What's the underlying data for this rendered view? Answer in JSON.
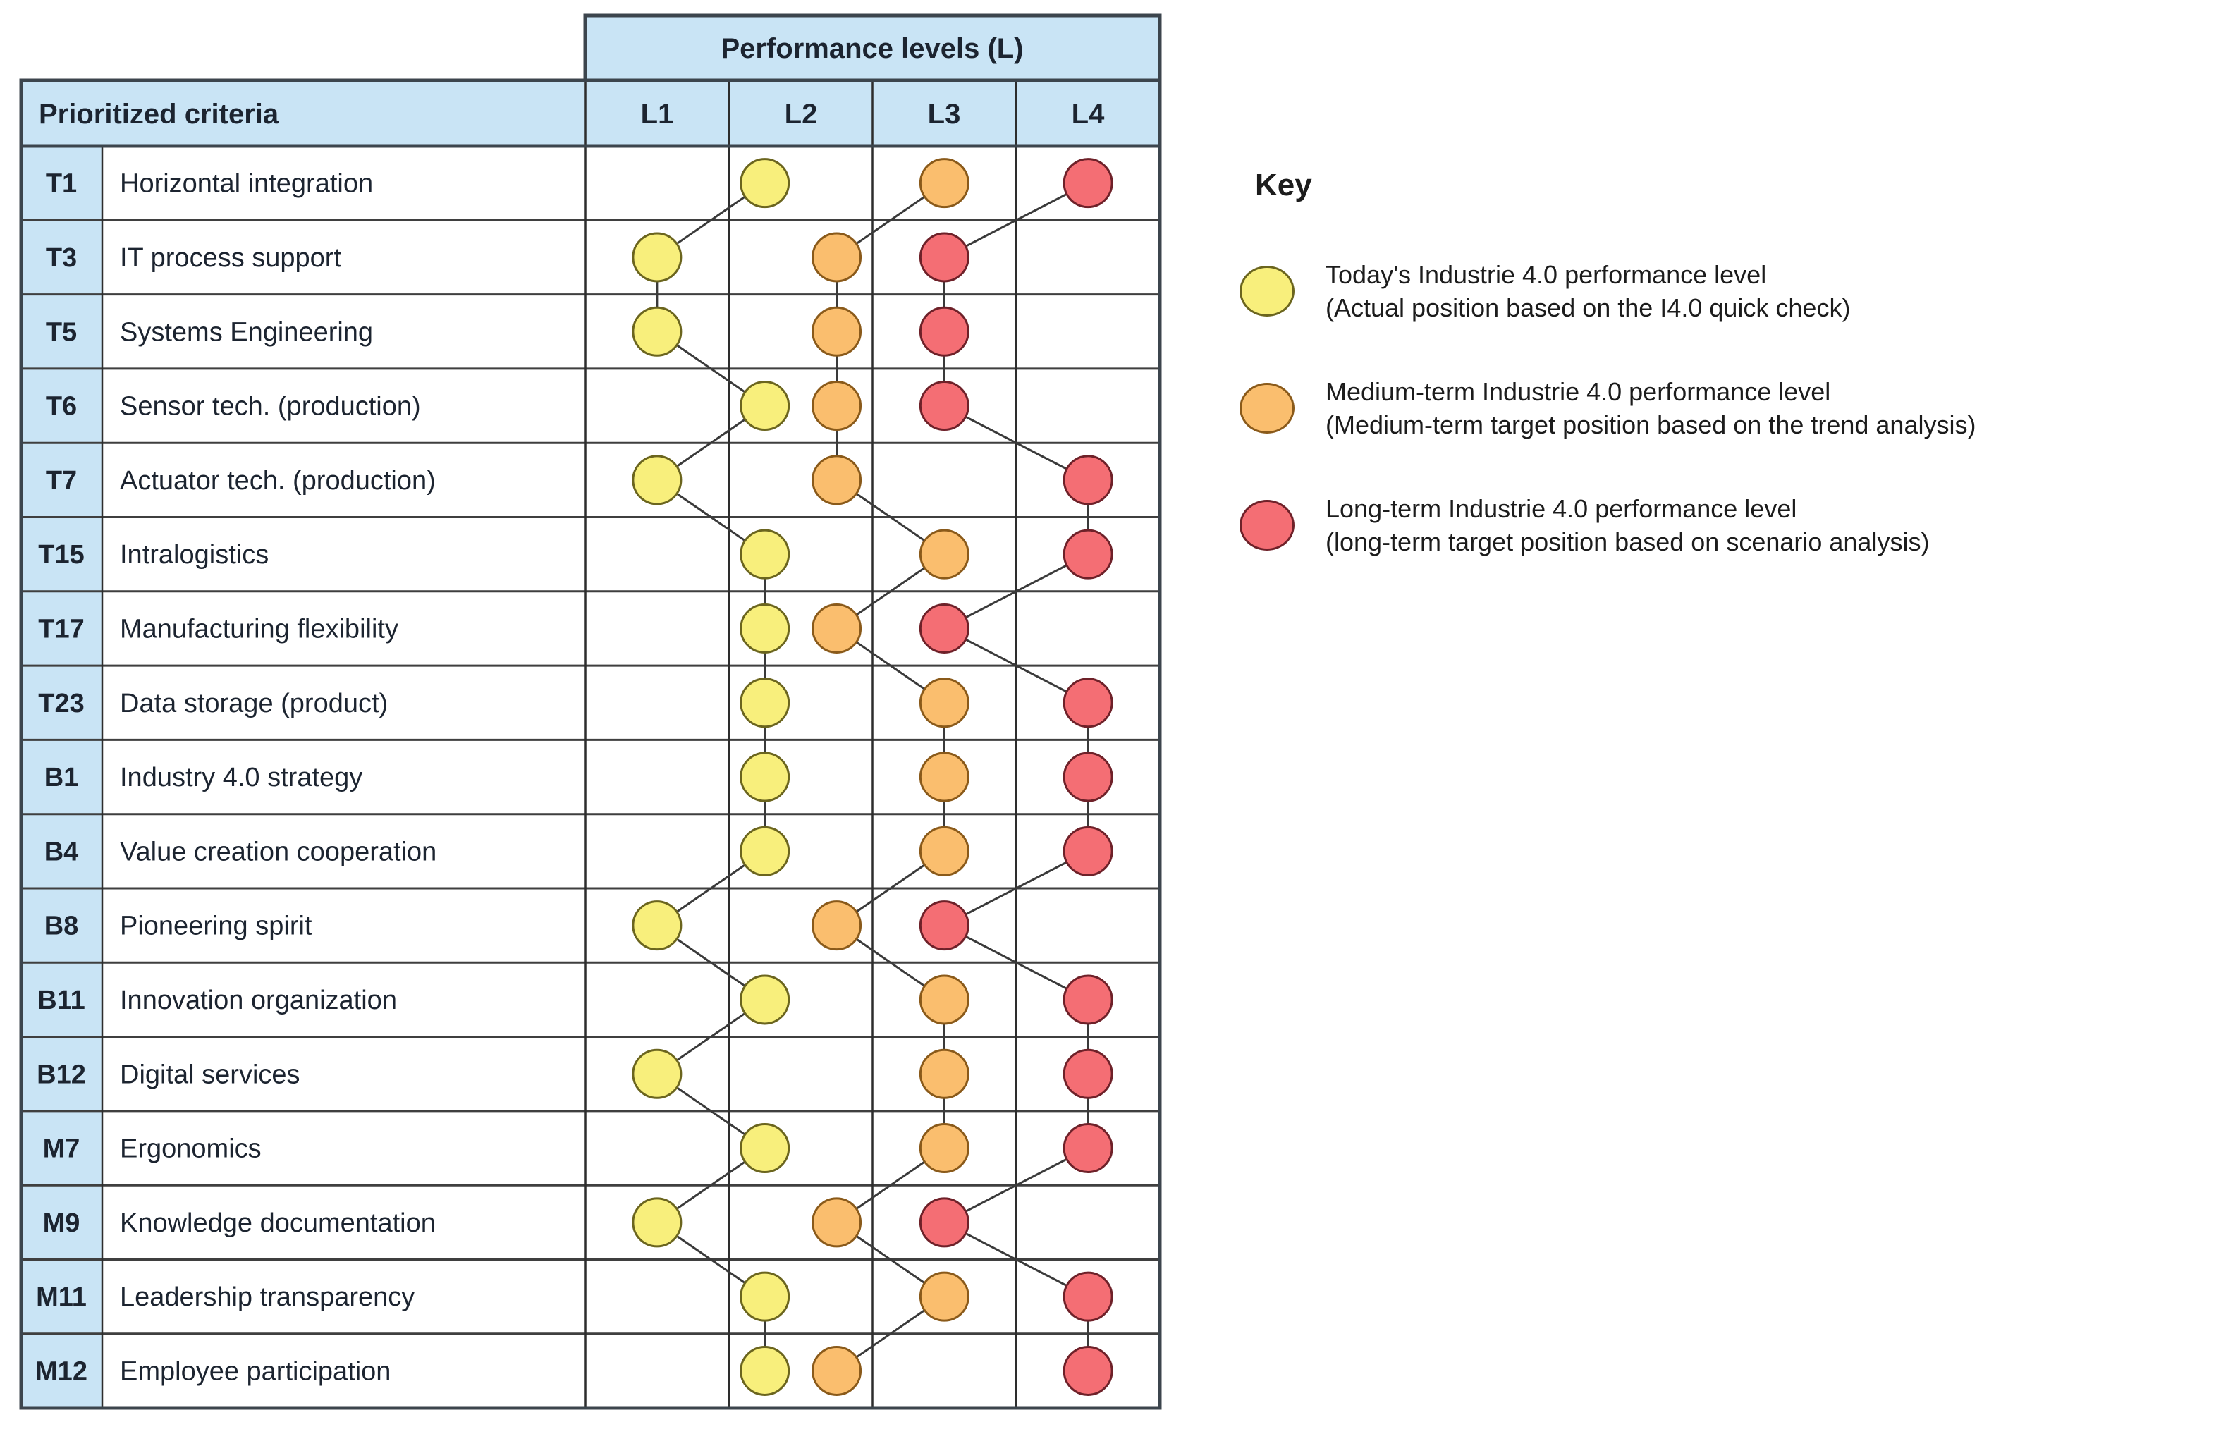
{
  "table": {
    "performance_header": "Performance levels (L)",
    "criteria_header": "Prioritized criteria",
    "level_labels": [
      "L1",
      "L2",
      "L3",
      "L4"
    ]
  },
  "key": {
    "title": "Key",
    "entries": [
      {
        "series": "today",
        "line1": "Today's Industrie 4.0 performance level",
        "line2": "(Actual position based on the I4.0 quick check)"
      },
      {
        "series": "medium_term",
        "line1": "Medium-term Industrie 4.0 performance level",
        "line2": "(Medium-term target position based on the trend analysis)"
      },
      {
        "series": "long_term",
        "line1": "Long-term Industrie 4.0 performance level",
        "line2": "(long-term target position based on scenario analysis)"
      }
    ]
  },
  "colors": {
    "header_blue": "#C9E4F5",
    "grid_line": "#3f3f3f",
    "column_line": "#2d2d2d",
    "frame_line": "#3c454d",
    "connector_line": "#3a3a3a",
    "text": "#1c2430",
    "today": {
      "fill": "#F8EF7C",
      "stroke": "#6B651E"
    },
    "medium_term": {
      "fill": "#FABE6E",
      "stroke": "#8A5A1A"
    },
    "long_term": {
      "fill": "#F46E74",
      "stroke": "#6E2129"
    }
  },
  "chart_data": {
    "type": "scatter",
    "title": "Performance levels (L)",
    "x_axis": {
      "label": "Performance levels (L)",
      "categories": [
        "L1",
        "L2",
        "L3",
        "L4"
      ],
      "range": [
        0.5,
        4.5
      ],
      "encoding": "value n sits at the center of column Ln; fractional values are offsets within a column"
    },
    "y_axis": {
      "label": "Prioritized criteria",
      "categories": [
        "T1",
        "T3",
        "T5",
        "T6",
        "T7",
        "T15",
        "T17",
        "T23",
        "B1",
        "B4",
        "B8",
        "B11",
        "B12",
        "M7",
        "M9",
        "M11",
        "M12"
      ]
    },
    "series": [
      {
        "name": "today",
        "label": "Today's Industrie 4.0 performance level"
      },
      {
        "name": "medium_term",
        "label": "Medium-term Industrie 4.0 performance level"
      },
      {
        "name": "long_term",
        "label": "Long-term Industrie 4.0 performance level"
      }
    ],
    "rows": [
      {
        "code": "T1",
        "label": "Horizontal integration",
        "today": 1.75,
        "medium_term": 3,
        "long_term": 4
      },
      {
        "code": "T3",
        "label": "IT process support",
        "today": 1,
        "medium_term": 2.25,
        "long_term": 3
      },
      {
        "code": "T5",
        "label": "Systems Engineering",
        "today": 1,
        "medium_term": 2.25,
        "long_term": 3
      },
      {
        "code": "T6",
        "label": "Sensor tech. (production)",
        "today": 1.75,
        "medium_term": 2.25,
        "long_term": 3
      },
      {
        "code": "T7",
        "label": "Actuator tech. (production)",
        "today": 1,
        "medium_term": 2.25,
        "long_term": 4
      },
      {
        "code": "T15",
        "label": "Intralogistics",
        "today": 1.75,
        "medium_term": 3,
        "long_term": 4
      },
      {
        "code": "T17",
        "label": "Manufacturing flexibility",
        "today": 1.75,
        "medium_term": 2.25,
        "long_term": 3
      },
      {
        "code": "T23",
        "label": "Data storage (product)",
        "today": 1.75,
        "medium_term": 3,
        "long_term": 4
      },
      {
        "code": "B1",
        "label": "Industry 4.0 strategy",
        "today": 1.75,
        "medium_term": 3,
        "long_term": 4
      },
      {
        "code": "B4",
        "label": "Value creation cooperation",
        "today": 1.75,
        "medium_term": 3,
        "long_term": 4
      },
      {
        "code": "B8",
        "label": "Pioneering spirit",
        "today": 1,
        "medium_term": 2.25,
        "long_term": 3
      },
      {
        "code": "B11",
        "label": "Innovation organization",
        "today": 1.75,
        "medium_term": 3,
        "long_term": 4
      },
      {
        "code": "B12",
        "label": "Digital services",
        "today": 1,
        "medium_term": 3,
        "long_term": 4
      },
      {
        "code": "M7",
        "label": "Ergonomics",
        "today": 1.75,
        "medium_term": 3,
        "long_term": 4
      },
      {
        "code": "M9",
        "label": "Knowledge documentation",
        "today": 1,
        "medium_term": 2.25,
        "long_term": 3
      },
      {
        "code": "M11",
        "label": "Leadership transparency",
        "today": 1.75,
        "medium_term": 3,
        "long_term": 4
      },
      {
        "code": "M12",
        "label": "Employee participation",
        "today": 1.75,
        "medium_term": 2.25,
        "long_term": 4
      }
    ],
    "legend_position": "right",
    "grid": true,
    "connectors": "dots of the same series in consecutive rows are joined by thin lines"
  }
}
